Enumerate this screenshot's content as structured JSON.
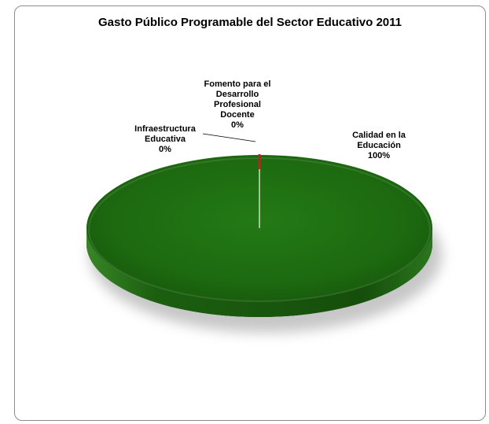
{
  "chart_data": {
    "type": "pie",
    "title": "Gasto Público Programable del Sector Educativo 2011",
    "slices": [
      {
        "label_lines": [
          "Calidad en la",
          "Educación"
        ],
        "percent_label": "100%",
        "value": 100,
        "color": "#1e6b12"
      },
      {
        "label_lines": [
          "Fomento para el",
          "Desarrollo",
          "Profesional",
          "Docente"
        ],
        "percent_label": "0%",
        "value": 0,
        "color": "#b3261e"
      },
      {
        "label_lines": [
          "Infraestructura",
          "Educativa"
        ],
        "percent_label": "0%",
        "value": 0,
        "color": "#9bbb59"
      }
    ],
    "three_d": true,
    "legend": "none"
  }
}
